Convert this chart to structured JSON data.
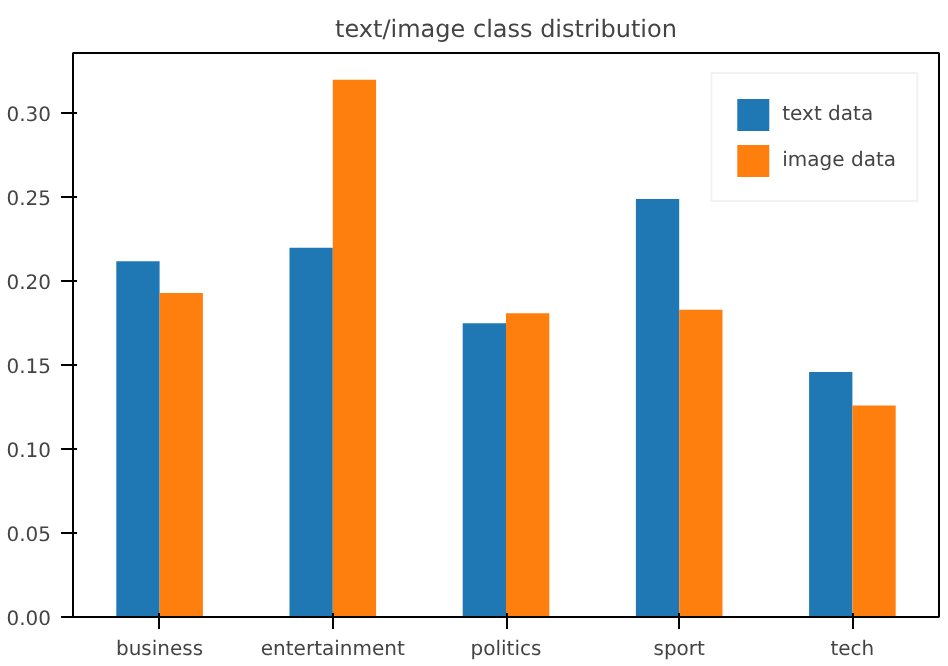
{
  "chart_data": {
    "type": "bar",
    "title": "text/image class distribution",
    "categories": [
      "business",
      "entertainment",
      "politics",
      "sport",
      "tech"
    ],
    "series": [
      {
        "name": "text data",
        "color": "#1f77b4",
        "values": [
          0.212,
          0.22,
          0.175,
          0.249,
          0.146
        ]
      },
      {
        "name": "image data",
        "color": "#ff7f0e",
        "values": [
          0.193,
          0.32,
          0.181,
          0.183,
          0.126
        ]
      }
    ],
    "ylim": [
      0,
      0.336
    ],
    "yticks": [
      {
        "value": 0,
        "label": "0.00"
      },
      {
        "value": 0.05,
        "label": "0.05"
      },
      {
        "value": 0.1,
        "label": "0.10"
      },
      {
        "value": 0.15,
        "label": "0.15"
      },
      {
        "value": 0.2,
        "label": "0.20"
      },
      {
        "value": 0.25,
        "label": "0.25"
      },
      {
        "value": 0.3,
        "label": "0.30"
      }
    ],
    "grid": false,
    "legend": "top right"
  }
}
